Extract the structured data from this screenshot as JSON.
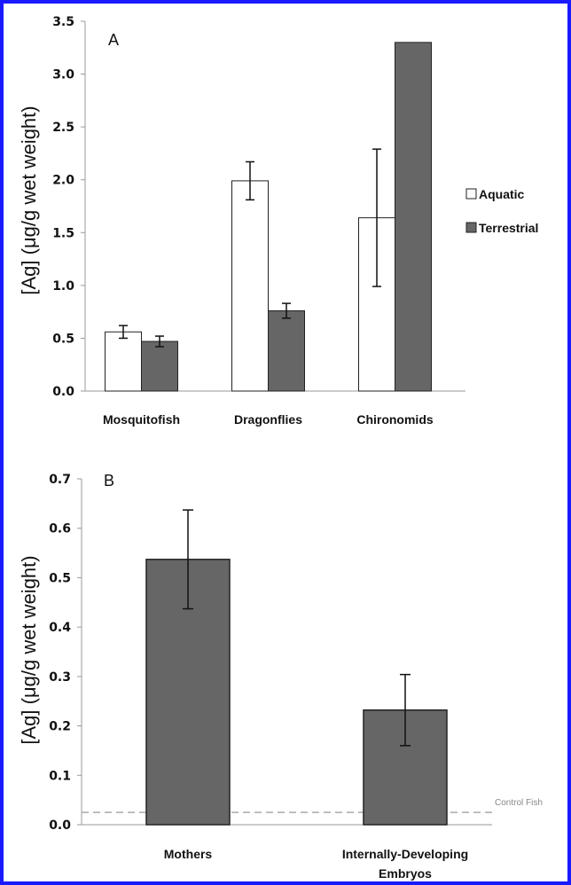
{
  "chart_data": [
    {
      "type": "bar",
      "panel_label": "A",
      "ylabel": "[Ag] (μg/g wet weight)",
      "xlabel": "",
      "ylim": [
        0,
        3.5
      ],
      "y_ticks": [
        "0.0",
        "0.5",
        "1.0",
        "1.5",
        "2.0",
        "2.5",
        "3.0",
        "3.5"
      ],
      "categories": [
        "Mosquitofish",
        "Dragonflies",
        "Chironomids"
      ],
      "series": [
        {
          "name": "Aquatic",
          "color": "#ffffff",
          "values": [
            0.56,
            1.99,
            1.64
          ],
          "error": [
            0.06,
            0.18,
            0.65
          ]
        },
        {
          "name": "Terrestrial",
          "color": "#666666",
          "values": [
            0.47,
            0.76,
            3.3
          ],
          "error": [
            0.05,
            0.07,
            0
          ]
        }
      ],
      "legend_position": "right"
    },
    {
      "type": "bar",
      "panel_label": "B",
      "ylabel": "[Ag] (μg/g wet weight)",
      "xlabel": "",
      "ylim": [
        0,
        0.7
      ],
      "y_ticks": [
        "0.0",
        "0.1",
        "0.2",
        "0.3",
        "0.4",
        "0.5",
        "0.6",
        "0.7"
      ],
      "categories": [
        "Mothers",
        "Internally-Developing Embryos"
      ],
      "category_lines": [
        [
          "Mothers"
        ],
        [
          "Internally-Developing",
          "Embryos"
        ]
      ],
      "series": [
        {
          "color": "#666666",
          "values": [
            0.537,
            0.232
          ],
          "error": [
            0.1,
            0.072
          ]
        }
      ],
      "reference_line": {
        "label": "Control Fish",
        "value": 0.025,
        "color": "#aaaaaa"
      }
    }
  ],
  "colors": {
    "frame": "#1a1aff",
    "axis": "#999999"
  }
}
